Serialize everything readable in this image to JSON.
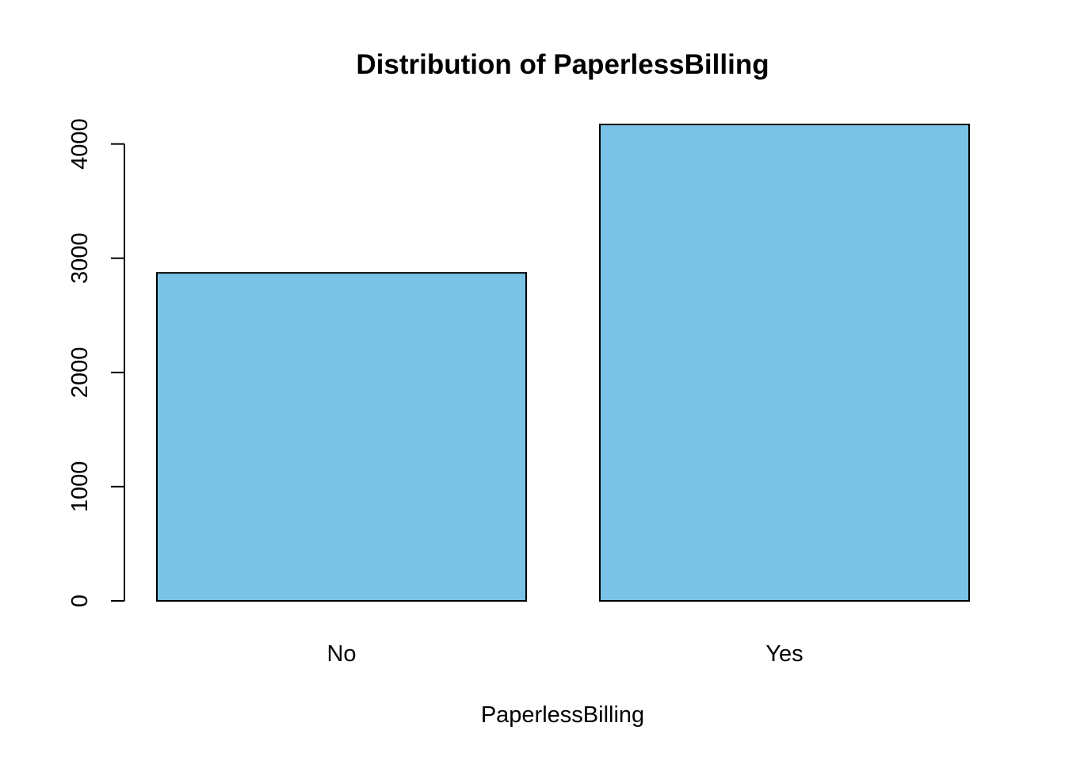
{
  "chart_data": {
    "type": "bar",
    "title": "Distribution of PaperlessBilling",
    "xlabel": "PaperlessBilling",
    "ylabel": "",
    "categories": [
      "No",
      "Yes"
    ],
    "values": [
      2872,
      4171
    ],
    "ylim": [
      0,
      4171
    ],
    "yticks": [
      0,
      1000,
      2000,
      3000,
      4000
    ],
    "ytick_labels": [
      "0",
      "1000",
      "2000",
      "3000",
      "4000"
    ],
    "grid": false,
    "legend": "none",
    "colors": {
      "bar_fill": "#7AC2E6",
      "bar_stroke": "#000000",
      "axis": "#000000",
      "background": "#FFFFFF"
    }
  }
}
